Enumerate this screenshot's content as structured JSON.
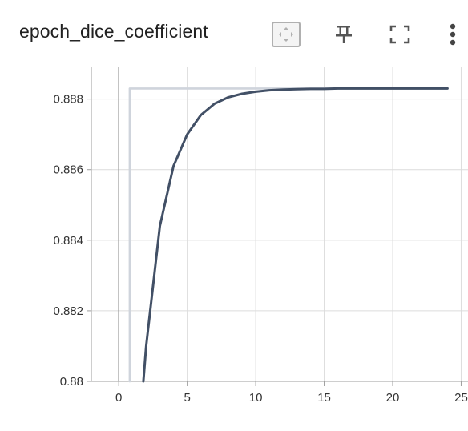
{
  "card": {
    "title": "epoch_dice_coefficient",
    "toolbar": {
      "fit_icon": "fit-domain-icon",
      "pin_icon": "pin-icon",
      "fullscreen_icon": "fullscreen-icon",
      "more_icon": "more-vert-icon"
    }
  },
  "chart_data": {
    "type": "line",
    "title": "epoch_dice_coefficient",
    "xlabel": "",
    "ylabel": "",
    "xlim": [
      -2,
      25.5
    ],
    "ylim": [
      0.88,
      0.8889
    ],
    "x_ticks": [
      0,
      5,
      10,
      15,
      20,
      25
    ],
    "y_ticks": [
      0.88,
      0.882,
      0.884,
      0.886,
      0.888
    ],
    "y_tick_labels": [
      "0.88",
      "0.882",
      "0.884",
      "0.886",
      "0.888"
    ],
    "grid": true,
    "legend": "none",
    "series": [
      {
        "color": "#cfd4dc",
        "x": [
          0.8,
          0.8,
          5,
          10,
          15,
          20,
          24
        ],
        "y": [
          0.88,
          0.8883,
          0.8883,
          0.8883,
          0.8883,
          0.8883,
          0.8883
        ]
      },
      {
        "color": "#425066",
        "x": [
          1.8,
          2,
          3,
          4,
          5,
          6,
          7,
          8,
          9,
          10,
          11,
          12,
          13,
          14,
          15,
          16,
          17,
          18,
          19,
          20,
          21,
          22,
          23,
          24
        ],
        "y": [
          0.88,
          0.881,
          0.8844,
          0.8861,
          0.887,
          0.88755,
          0.88787,
          0.88805,
          0.88815,
          0.88821,
          0.88825,
          0.88827,
          0.88828,
          0.88829,
          0.88829,
          0.8883,
          0.8883,
          0.8883,
          0.8883,
          0.8883,
          0.8883,
          0.8883,
          0.8883,
          0.8883
        ]
      }
    ],
    "colors": {
      "grid": "#dcdcdc",
      "axis": "#9e9e9e",
      "zero_line": "#9e9e9e"
    }
  }
}
